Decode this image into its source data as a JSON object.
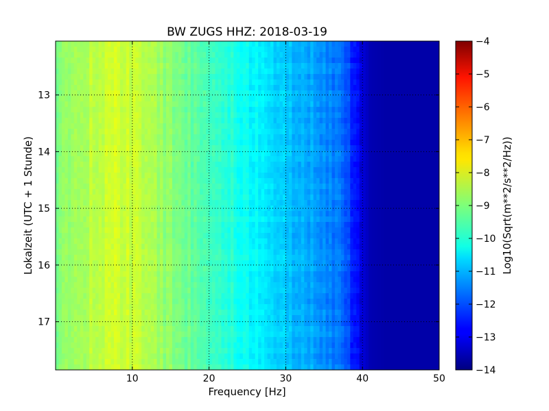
{
  "chart_data": {
    "type": "heatmap",
    "title": "BW ZUGS HHZ: 2018-03-19",
    "xlabel": "Frequency [Hz]",
    "ylabel": "Lokalzeit (UTC + 1 Stunde)",
    "xlim": [
      0,
      50
    ],
    "ylim": [
      12.05,
      17.85
    ],
    "y_inverted": true,
    "grid": true,
    "xticks": [
      10,
      20,
      30,
      40,
      50
    ],
    "yticks": [
      13,
      14,
      15,
      16,
      17
    ],
    "colormap": "jet",
    "colorbar": {
      "label": "Log10(Sqrt(m**2/s**2/Hz))",
      "range": [
        -14,
        -4
      ],
      "ticks": [
        -4,
        -5,
        -6,
        -7,
        -8,
        -9,
        -10,
        -11,
        -12,
        -13,
        -14
      ]
    },
    "spectrum_profile": {
      "frequency_hz": [
        0,
        3,
        6,
        9,
        12,
        15,
        18,
        21,
        24,
        27,
        30,
        33,
        36,
        38,
        39,
        40,
        41,
        43,
        45,
        50
      ],
      "log10_amplitude": [
        -9.0,
        -8.6,
        -8.3,
        -8.2,
        -8.5,
        -8.9,
        -9.3,
        -9.6,
        -10.0,
        -10.4,
        -10.8,
        -11.1,
        -11.5,
        -11.9,
        -12.6,
        -13.1,
        -13.5,
        -13.6,
        -13.6,
        -13.6
      ]
    }
  }
}
